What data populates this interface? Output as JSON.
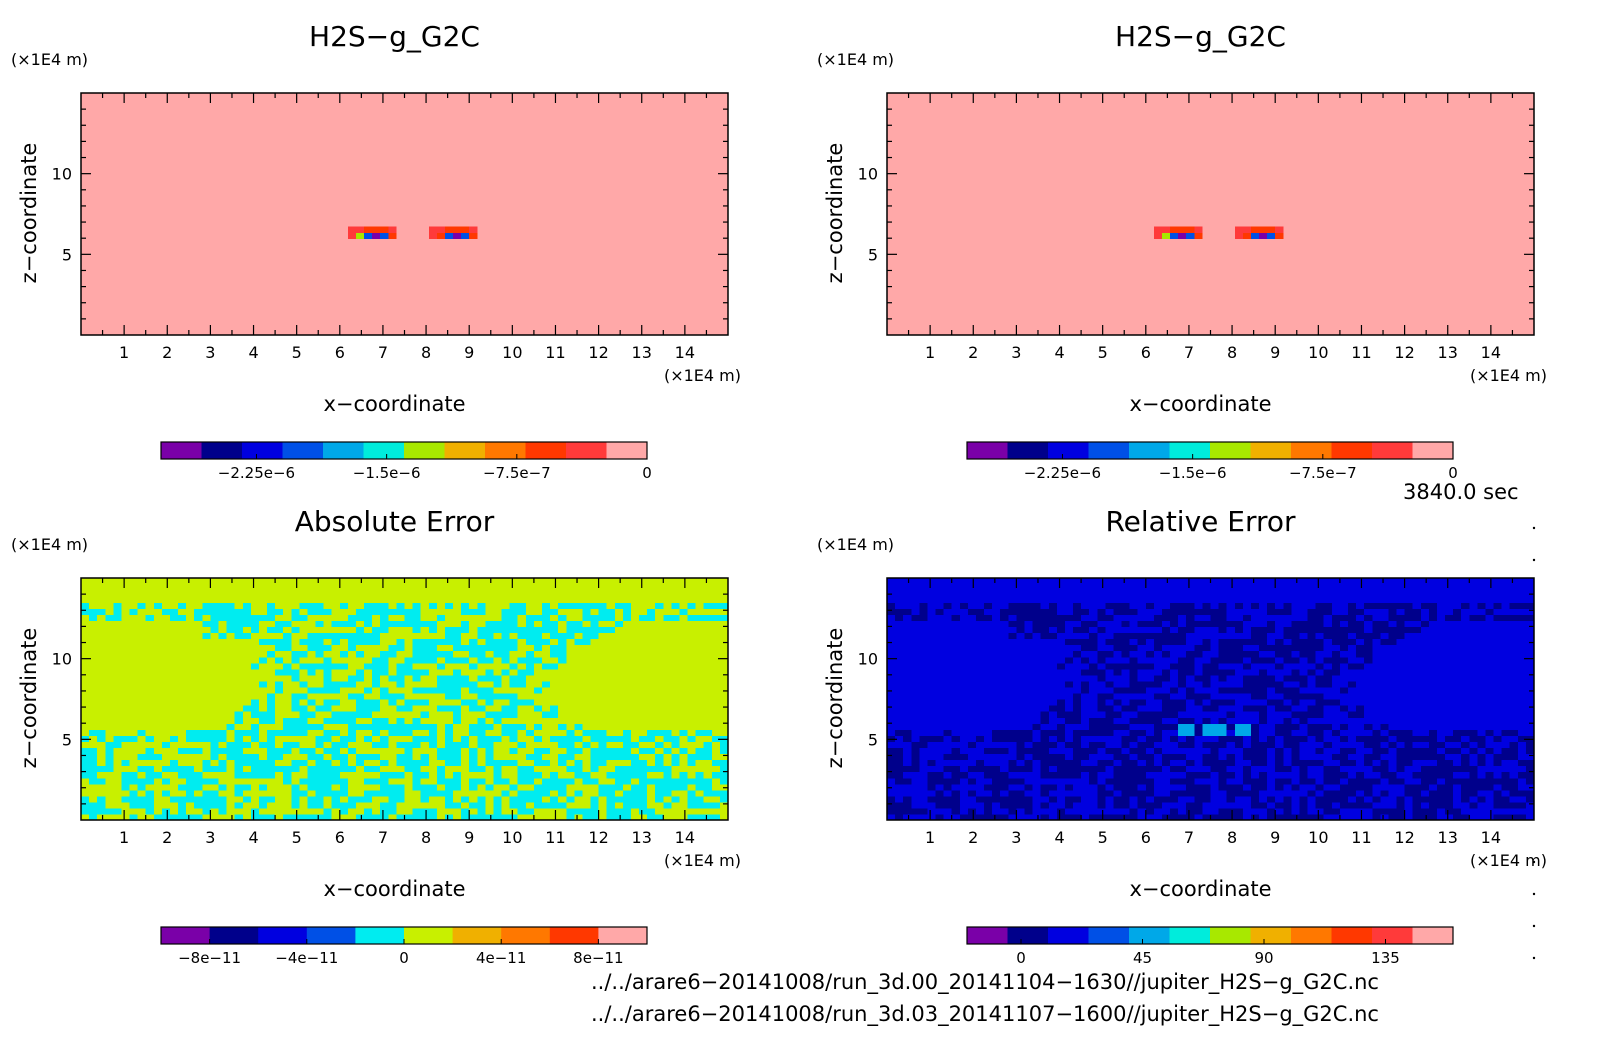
{
  "chart_data": [
    {
      "type": "heatmap",
      "title": "H2S−g_G2C",
      "xlabel": "x−coordinate",
      "ylabel": "z−coordinate",
      "x_unit": "(×1E4 m)",
      "y_unit": "(×1E4 m)",
      "xlim": [
        0,
        15
      ],
      "ylim": [
        0,
        15
      ],
      "x_ticks": [
        "1",
        "2",
        "3",
        "4",
        "5",
        "6",
        "7",
        "8",
        "9",
        "10",
        "11",
        "12",
        "13",
        "14"
      ],
      "y_ticks": [
        "5",
        "10"
      ],
      "field": "h2s",
      "colorbar": {
        "range": [
          -2.8e-06,
          0
        ],
        "colors": [
          "#7a00a8",
          "#00008b",
          "#0000e0",
          "#0050e6",
          "#00a8e8",
          "#00ecdc",
          "#a8e800",
          "#f0b000",
          "#ff7800",
          "#ff3800",
          "#ff3a3a",
          "#ffa8a8"
        ],
        "tick_values": [
          -2.25e-06,
          -1.5e-06,
          -7.5e-07,
          0
        ],
        "tick_labels": [
          "−2.25e−6",
          "−1.5e−6",
          "−7.5e−7",
          "0"
        ]
      }
    },
    {
      "type": "heatmap",
      "title": "H2S−g_G2C",
      "xlabel": "x−coordinate",
      "ylabel": "z−coordinate",
      "x_unit": "(×1E4 m)",
      "y_unit": "(×1E4 m)",
      "xlim": [
        0,
        15
      ],
      "ylim": [
        0,
        15
      ],
      "x_ticks": [
        "1",
        "2",
        "3",
        "4",
        "5",
        "6",
        "7",
        "8",
        "9",
        "10",
        "11",
        "12",
        "13",
        "14"
      ],
      "y_ticks": [
        "5",
        "10"
      ],
      "field": "h2s",
      "colorbar": {
        "range": [
          -2.8e-06,
          0
        ],
        "colors": [
          "#7a00a8",
          "#00008b",
          "#0000e0",
          "#0050e6",
          "#00a8e8",
          "#00ecdc",
          "#a8e800",
          "#f0b000",
          "#ff7800",
          "#ff3800",
          "#ff3a3a",
          "#ffa8a8"
        ],
        "tick_values": [
          -2.25e-06,
          -1.5e-06,
          -7.5e-07,
          0
        ],
        "tick_labels": [
          "−2.25e−6",
          "−1.5e−6",
          "−7.5e−7",
          "0"
        ]
      }
    },
    {
      "type": "heatmap",
      "title": "Absolute Error",
      "xlabel": "x−coordinate",
      "ylabel": "z−coordinate",
      "x_unit": "(×1E4 m)",
      "y_unit": "(×1E4 m)",
      "xlim": [
        0,
        15
      ],
      "ylim": [
        0,
        15
      ],
      "x_ticks": [
        "1",
        "2",
        "3",
        "4",
        "5",
        "6",
        "7",
        "8",
        "9",
        "10",
        "11",
        "12",
        "13",
        "14"
      ],
      "y_ticks": [
        "5",
        "10"
      ],
      "field": "abs",
      "colorbar": {
        "range": [
          -1e-10,
          1e-10
        ],
        "colors": [
          "#7a00a8",
          "#00008b",
          "#0000e0",
          "#0050e6",
          "#00ecf0",
          "#c8f000",
          "#f0b000",
          "#ff7800",
          "#ff3800",
          "#ffa8a8"
        ],
        "tick_values": [
          -8e-11,
          -4e-11,
          0,
          4e-11,
          8e-11
        ],
        "tick_labels": [
          "−8e−11",
          "−4e−11",
          "0",
          "4e−11",
          "8e−11"
        ]
      }
    },
    {
      "type": "heatmap",
      "title": "Relative Error",
      "xlabel": "x−coordinate",
      "ylabel": "z−coordinate",
      "x_unit": "(×1E4 m)",
      "y_unit": "(×1E4 m)",
      "xlim": [
        0,
        15
      ],
      "ylim": [
        0,
        15
      ],
      "x_ticks": [
        "1",
        "2",
        "3",
        "4",
        "5",
        "6",
        "7",
        "8",
        "9",
        "10",
        "11",
        "12",
        "13",
        "14"
      ],
      "y_ticks": [
        "5",
        "10"
      ],
      "field": "rel",
      "colorbar": {
        "range": [
          -20,
          160
        ],
        "colors": [
          "#7a00a8",
          "#00008b",
          "#0000e0",
          "#0050e6",
          "#00a8e8",
          "#00ecdc",
          "#a8e800",
          "#f0b000",
          "#ff7800",
          "#ff3800",
          "#ff3a3a",
          "#ffa8a8"
        ],
        "tick_values": [
          0,
          45,
          90,
          135
        ],
        "tick_labels": [
          "0",
          "45",
          "90",
          "135"
        ]
      }
    }
  ],
  "time_label": "3840.0 sec",
  "file_paths": [
    "../../arare6−20141008/run_3d.00_20141104−1630//jupiter_H2S−g_G2C.nc",
    "../../arare6−20141008/run_3d.03_20141107−1600//jupiter_H2S−g_G2C.nc"
  ]
}
